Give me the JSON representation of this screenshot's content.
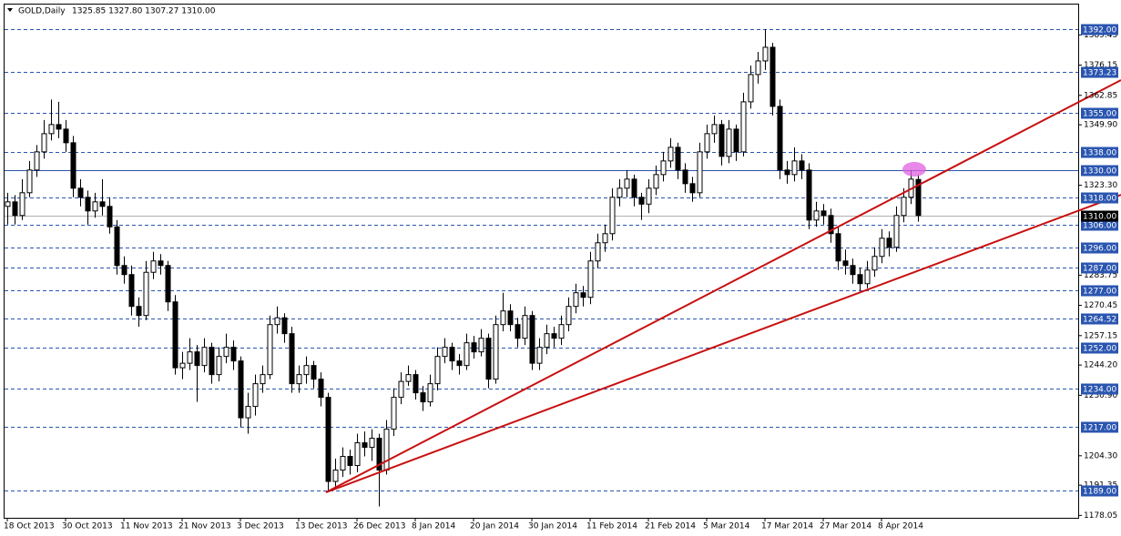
{
  "chart_data": {
    "type": "candlestick",
    "symbol": "GOLD,Daily",
    "header_prices": "1325.85 1327.80 1307.27 1310.00",
    "ylim": [
      1177,
      1402.8
    ],
    "yticks": [
      1389.45,
      1376.15,
      1362.85,
      {
        "value": 1349.9,
        "label": "1349.90"
      },
      {
        "value": 1323.3,
        "label": "1323.30"
      },
      1283.75,
      1270.45,
      1257.15,
      {
        "value": 1244.2,
        "label": "1244.20"
      },
      {
        "value": 1230.9,
        "label": "1230.90"
      },
      {
        "value": 1204.3,
        "label": "1204.30"
      },
      1191.35,
      1178.05
    ],
    "levels": [
      {
        "value": 1392,
        "label": "1392.00"
      },
      {
        "value": 1373.23,
        "label": "1373.23"
      },
      {
        "value": 1355,
        "label": "1355.00"
      },
      {
        "value": 1338,
        "label": "1338.00"
      },
      {
        "value": 1330,
        "label": "1330.00",
        "style": "solid"
      },
      {
        "value": 1318,
        "label": "1318.00"
      },
      {
        "value": 1306,
        "label": "1306.00"
      },
      {
        "value": 1296,
        "label": "1296.00"
      },
      {
        "value": 1287,
        "label": "1287.00"
      },
      {
        "value": 1277,
        "label": "1277.00"
      },
      {
        "value": 1264.52,
        "label": "1264.52"
      },
      {
        "value": 1252,
        "label": "1252.00"
      },
      {
        "value": 1234,
        "label": "1234.00"
      },
      {
        "value": 1217,
        "label": "1217.00"
      },
      {
        "value": 1189,
        "label": "1189.00"
      }
    ],
    "current_price": {
      "value": 1310,
      "label": "1310.00"
    },
    "level_color": "#2a55b0",
    "up_color": "#ffffff",
    "down_color": "#000000",
    "categories": [
      "18 Oct 2013",
      null,
      null,
      null,
      null,
      null,
      null,
      null,
      "30 Oct 2013",
      null,
      null,
      null,
      null,
      null,
      null,
      null,
      "11 Nov 2013",
      null,
      null,
      null,
      null,
      null,
      null,
      null,
      "21 Nov 2013",
      null,
      null,
      null,
      null,
      null,
      null,
      null,
      "3 Dec 2013",
      null,
      null,
      null,
      null,
      null,
      null,
      null,
      "13 Dec 2013",
      null,
      null,
      null,
      null,
      null,
      null,
      null,
      "26 Dec 2013",
      null,
      null,
      null,
      null,
      null,
      null,
      null,
      "8 Jan 2014",
      null,
      null,
      null,
      null,
      null,
      null,
      null,
      "20 Jan 2014",
      null,
      null,
      null,
      null,
      null,
      null,
      null,
      "30 Jan 2014",
      null,
      null,
      null,
      null,
      null,
      null,
      null,
      "11 Feb 2014",
      null,
      null,
      null,
      null,
      null,
      null,
      null,
      "21 Feb 2014",
      null,
      null,
      null,
      null,
      null,
      null,
      null,
      "5 Mar 2014",
      null,
      null,
      null,
      null,
      null,
      null,
      null,
      "17 Mar 2014",
      null,
      null,
      null,
      null,
      null,
      null,
      null,
      "27 Mar 2014",
      null,
      null,
      null,
      null,
      null,
      null,
      null,
      "8 Apr 2014",
      null,
      null,
      null,
      null,
      null
    ],
    "ohlc": [
      [
        1314,
        1320,
        1306,
        1316
      ],
      [
        1316,
        1319,
        1306,
        1310
      ],
      [
        1310,
        1326,
        1308,
        1320
      ],
      [
        1320,
        1334,
        1318,
        1330
      ],
      [
        1330,
        1341,
        1327,
        1338
      ],
      [
        1338,
        1352,
        1335,
        1346
      ],
      [
        1346,
        1361,
        1343,
        1350
      ],
      [
        1350,
        1360,
        1344,
        1348
      ],
      [
        1348,
        1352,
        1338,
        1342
      ],
      [
        1342,
        1345,
        1318,
        1322
      ],
      [
        1322,
        1326,
        1314,
        1318
      ],
      [
        1318,
        1321,
        1306,
        1312
      ],
      [
        1312,
        1320,
        1309,
        1316
      ],
      [
        1316,
        1326,
        1310,
        1314
      ],
      [
        1314,
        1318,
        1302,
        1305
      ],
      [
        1305,
        1308,
        1284,
        1288
      ],
      [
        1288,
        1292,
        1280,
        1284
      ],
      [
        1284,
        1288,
        1266,
        1270
      ],
      [
        1270,
        1274,
        1261,
        1266
      ],
      [
        1266,
        1290,
        1264,
        1285
      ],
      [
        1285,
        1294,
        1282,
        1290
      ],
      [
        1290,
        1293,
        1284,
        1288
      ],
      [
        1288,
        1290,
        1268,
        1272
      ],
      [
        1272,
        1275,
        1240,
        1243
      ],
      [
        1243,
        1250,
        1238,
        1245
      ],
      [
        1245,
        1256,
        1242,
        1250
      ],
      [
        1250,
        1253,
        1228,
        1244
      ],
      [
        1244,
        1256,
        1241,
        1252
      ],
      [
        1252,
        1254,
        1236,
        1240
      ],
      [
        1240,
        1252,
        1237,
        1248
      ],
      [
        1248,
        1258,
        1245,
        1252
      ],
      [
        1252,
        1255,
        1242,
        1246
      ],
      [
        1246,
        1248,
        1217,
        1221
      ],
      [
        1221,
        1232,
        1214,
        1226
      ],
      [
        1226,
        1240,
        1222,
        1236
      ],
      [
        1236,
        1244,
        1232,
        1240
      ],
      [
        1240,
        1266,
        1238,
        1262
      ],
      [
        1262,
        1270,
        1258,
        1265
      ],
      [
        1265,
        1267,
        1254,
        1258
      ],
      [
        1258,
        1261,
        1232,
        1236
      ],
      [
        1236,
        1244,
        1232,
        1240
      ],
      [
        1240,
        1248,
        1236,
        1244
      ],
      [
        1244,
        1246,
        1234,
        1238
      ],
      [
        1238,
        1241,
        1226,
        1230
      ],
      [
        1230,
        1232,
        1189,
        1193
      ],
      [
        1193,
        1203,
        1190,
        1198
      ],
      [
        1198,
        1208,
        1195,
        1204
      ],
      [
        1204,
        1207,
        1196,
        1200
      ],
      [
        1200,
        1214,
        1197,
        1210
      ],
      [
        1210,
        1215,
        1204,
        1208
      ],
      [
        1208,
        1216,
        1202,
        1212
      ],
      [
        1212,
        1214,
        1182,
        1198
      ],
      [
        1198,
        1220,
        1196,
        1216
      ],
      [
        1216,
        1234,
        1213,
        1230
      ],
      [
        1230,
        1241,
        1227,
        1237
      ],
      [
        1237,
        1244,
        1235,
        1240
      ],
      [
        1240,
        1242,
        1229,
        1232
      ],
      [
        1232,
        1235,
        1224,
        1228
      ],
      [
        1228,
        1240,
        1226,
        1236
      ],
      [
        1236,
        1252,
        1233,
        1248
      ],
      [
        1248,
        1256,
        1245,
        1252
      ],
      [
        1252,
        1254,
        1242,
        1246
      ],
      [
        1246,
        1249,
        1240,
        1244
      ],
      [
        1244,
        1258,
        1242,
        1254
      ],
      [
        1254,
        1257,
        1247,
        1250
      ],
      [
        1250,
        1260,
        1248,
        1256
      ],
      [
        1256,
        1258,
        1234,
        1238
      ],
      [
        1238,
        1266,
        1236,
        1262
      ],
      [
        1262,
        1276,
        1259,
        1268
      ],
      [
        1268,
        1271,
        1259,
        1262
      ],
      [
        1262,
        1265,
        1252,
        1256
      ],
      [
        1256,
        1270,
        1253,
        1266
      ],
      [
        1266,
        1268,
        1242,
        1245
      ],
      [
        1245,
        1256,
        1242,
        1252
      ],
      [
        1252,
        1262,
        1249,
        1258
      ],
      [
        1258,
        1261,
        1252,
        1256
      ],
      [
        1256,
        1266,
        1253,
        1262
      ],
      [
        1262,
        1274,
        1259,
        1270
      ],
      [
        1270,
        1280,
        1267,
        1276
      ],
      [
        1276,
        1279,
        1270,
        1274
      ],
      [
        1274,
        1294,
        1271,
        1290
      ],
      [
        1290,
        1302,
        1287,
        1298
      ],
      [
        1298,
        1306,
        1294,
        1302
      ],
      [
        1302,
        1322,
        1299,
        1318
      ],
      [
        1318,
        1326,
        1314,
        1322
      ],
      [
        1322,
        1330,
        1318,
        1326
      ],
      [
        1326,
        1328,
        1314,
        1318
      ],
      [
        1318,
        1320,
        1308,
        1315
      ],
      [
        1315,
        1326,
        1311,
        1322
      ],
      [
        1322,
        1332,
        1319,
        1328
      ],
      [
        1328,
        1338,
        1325,
        1334
      ],
      [
        1334,
        1344,
        1331,
        1340
      ],
      [
        1340,
        1342,
        1326,
        1330
      ],
      [
        1330,
        1333,
        1320,
        1324
      ],
      [
        1324,
        1327,
        1316,
        1320
      ],
      [
        1320,
        1342,
        1318,
        1338
      ],
      [
        1338,
        1350,
        1335,
        1346
      ],
      [
        1346,
        1354,
        1342,
        1350
      ],
      [
        1350,
        1352,
        1332,
        1336
      ],
      [
        1336,
        1352,
        1333,
        1348
      ],
      [
        1348,
        1350,
        1334,
        1338
      ],
      [
        1338,
        1364,
        1336,
        1360
      ],
      [
        1360,
        1376,
        1357,
        1372
      ],
      [
        1372,
        1382,
        1368,
        1378
      ],
      [
        1378,
        1392,
        1374,
        1384
      ],
      [
        1384,
        1386,
        1354,
        1358
      ],
      [
        1358,
        1361,
        1326,
        1330
      ],
      [
        1330,
        1334,
        1324,
        1328
      ],
      [
        1328,
        1340,
        1325,
        1334
      ],
      [
        1334,
        1337,
        1326,
        1330
      ],
      [
        1330,
        1333,
        1304,
        1308
      ],
      [
        1308,
        1316,
        1305,
        1312
      ],
      [
        1312,
        1315,
        1306,
        1310
      ],
      [
        1310,
        1313,
        1298,
        1302
      ],
      [
        1302,
        1305,
        1286,
        1290
      ],
      [
        1290,
        1295,
        1284,
        1288
      ],
      [
        1288,
        1291,
        1280,
        1284
      ],
      [
        1284,
        1287,
        1277,
        1280
      ],
      [
        1280,
        1290,
        1278,
        1286
      ],
      [
        1286,
        1296,
        1283,
        1292
      ],
      [
        1292,
        1304,
        1289,
        1300
      ],
      [
        1300,
        1303,
        1292,
        1296
      ],
      [
        1296,
        1314,
        1294,
        1310
      ],
      [
        1310,
        1322,
        1307,
        1318
      ],
      [
        1318,
        1330,
        1315,
        1326
      ],
      [
        1325.85,
        1327.8,
        1307.27,
        1310
      ]
    ]
  }
}
